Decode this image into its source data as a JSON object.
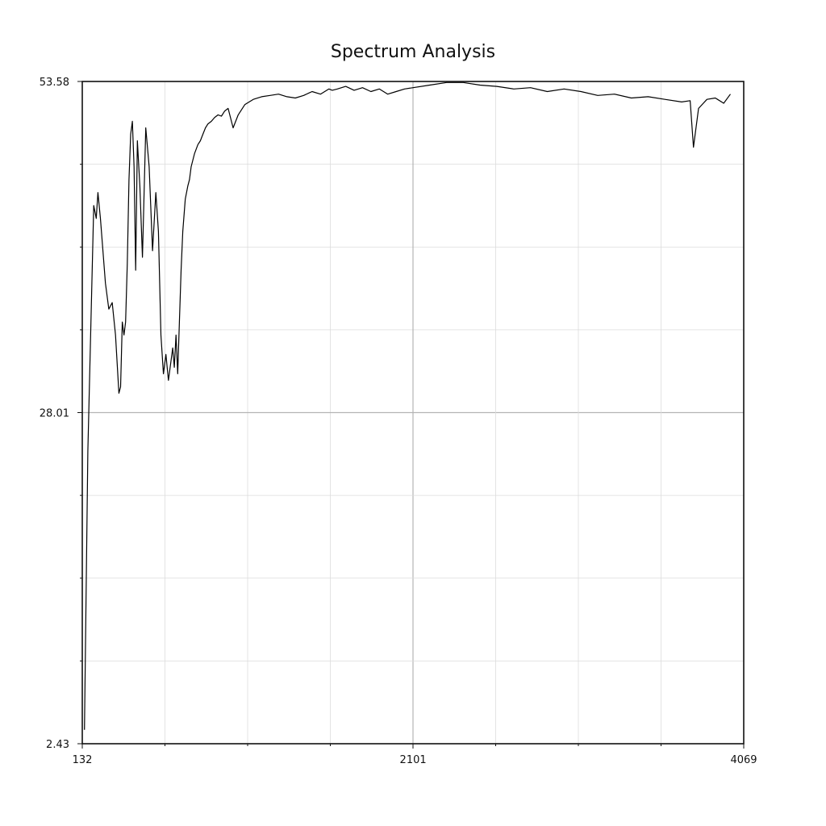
{
  "chart_data": {
    "type": "line",
    "title": "Spectrum Analysis",
    "xlabel": "",
    "ylabel": "",
    "xlim": [
      132,
      4069
    ],
    "ylim": [
      2.43,
      53.58
    ],
    "x_tick_labels": [
      "132",
      "2101",
      "4069"
    ],
    "y_tick_labels": [
      "53.58",
      "28.01",
      "2.43"
    ],
    "x_ticks": [
      132,
      2101,
      4069
    ],
    "y_ticks": [
      53.58,
      28.01,
      2.43
    ],
    "grid": true,
    "series": [
      {
        "x": [
          145,
          165,
          200,
          215,
          225,
          240,
          255,
          270,
          290,
          310,
          330,
          350,
          360,
          370,
          380,
          390,
          400,
          410,
          420,
          430,
          440,
          450,
          460,
          475,
          490,
          510,
          530,
          550,
          570,
          585,
          600,
          615,
          630,
          645,
          660,
          670,
          680,
          690,
          700,
          710,
          720,
          730,
          745,
          760,
          770,
          780,
          800,
          820,
          835,
          850,
          865,
          880,
          900,
          920,
          940,
          960,
          980,
          1000,
          1030,
          1060,
          1100,
          1150,
          1200,
          1250,
          1300,
          1350,
          1400,
          1450,
          1500,
          1550,
          1600,
          1620,
          1650,
          1700,
          1750,
          1800,
          1850,
          1900,
          1950,
          2000,
          2050,
          2101,
          2200,
          2300,
          2400,
          2500,
          2600,
          2700,
          2800,
          2900,
          3000,
          3100,
          3200,
          3300,
          3400,
          3500,
          3600,
          3700,
          3750,
          3770,
          3800,
          3850,
          3900,
          3950,
          3990
        ],
        "y": [
          3.5,
          25.0,
          44.0,
          43.0,
          45.0,
          43.0,
          40.5,
          38.0,
          36.0,
          36.5,
          34.0,
          29.5,
          30.0,
          35.0,
          34.0,
          35.0,
          39.5,
          46.0,
          49.5,
          50.5,
          47.0,
          39.0,
          49.0,
          45.5,
          40.0,
          50.0,
          47.0,
          40.5,
          45.0,
          42.0,
          34.0,
          31.0,
          32.5,
          30.5,
          32.0,
          33.0,
          31.5,
          34.0,
          31.0,
          35.0,
          39.0,
          42.0,
          44.5,
          45.5,
          46.0,
          47.0,
          48.0,
          48.7,
          49.0,
          49.5,
          50.0,
          50.3,
          50.5,
          50.8,
          51.0,
          50.9,
          51.3,
          51.5,
          50.0,
          51.0,
          51.8,
          52.2,
          52.4,
          52.5,
          52.6,
          52.4,
          52.3,
          52.5,
          52.8,
          52.6,
          53.0,
          52.9,
          53.0,
          53.2,
          52.9,
          53.1,
          52.8,
          53.0,
          52.6,
          52.8,
          53.0,
          53.1,
          53.3,
          53.5,
          53.5,
          53.3,
          53.2,
          53.0,
          53.1,
          52.8,
          53.0,
          52.8,
          52.5,
          52.6,
          52.3,
          52.4,
          52.2,
          52.0,
          52.1,
          48.5,
          51.5,
          52.2,
          52.3,
          51.9,
          52.6
        ]
      }
    ]
  }
}
